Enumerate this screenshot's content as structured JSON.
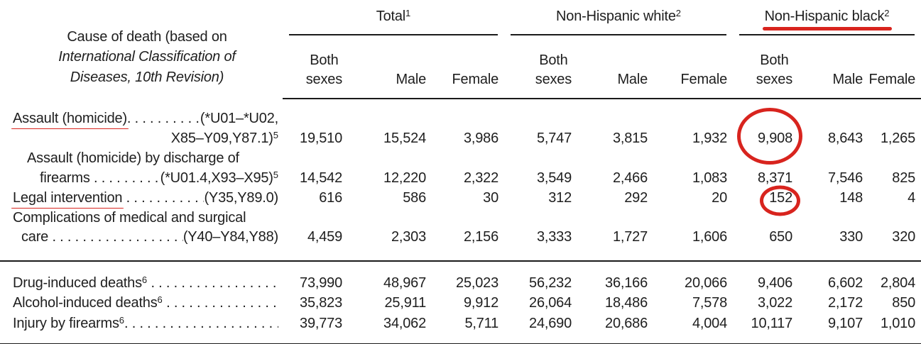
{
  "colors": {
    "annotation_red": "#d8241e",
    "text": "#1e1e1e",
    "rule": "#1a1a1a",
    "background": "#ffffff"
  },
  "stub_head": {
    "line1": "Cause of death (based on",
    "line2": "International Classification of",
    "line3": "Diseases, 10th Revision)"
  },
  "groups": [
    {
      "label": "Total",
      "sup": "1",
      "red_underline": false
    },
    {
      "label": "Non-Hispanic white",
      "sup": "2",
      "red_underline": false
    },
    {
      "label": "Non-Hispanic black",
      "sup": "2",
      "red_underline": true
    }
  ],
  "sub_headers": {
    "both": "Both",
    "sexes": "sexes",
    "male": "Male",
    "female": "Female"
  },
  "body_lines": [
    {
      "section": "main",
      "indent": 0,
      "name": "Assault (homicide)",
      "name_underline": true,
      "dots": ". . . . . . . . . . . . . . . . . . . . . . . . . . . .",
      "code": "(*U01–*U02,"
    },
    {
      "section": "main",
      "align": "right",
      "code": "X85–Y09,Y87.1)",
      "code_sup": "5",
      "values": [
        "19,510",
        "15,524",
        "3,986",
        "5,747",
        "3,815",
        "1,932",
        "9,908",
        "8,643",
        "1,265"
      ],
      "circle": {
        "col": 6,
        "size": "large"
      }
    },
    {
      "section": "main",
      "indent": 2,
      "name": "Assault (homicide) by discharge of"
    },
    {
      "section": "main",
      "indent": 3,
      "name": "firearms",
      "dots": " . . . . . . . . . . . . . . . . . . . . . . . . . . .",
      "code": "(*U01.4,X93–X95)",
      "code_sup": "5",
      "values": [
        "14,542",
        "12,220",
        "2,322",
        "3,549",
        "2,466",
        "1,083",
        "8,371",
        "7,546",
        "825"
      ]
    },
    {
      "section": "main",
      "indent": 0,
      "name": "Legal intervention",
      "name_underline": true,
      "dots": " . . . . . . . . . . . . . . . . . . . . . . . . . . .",
      "code": "(Y35,Y89.0)",
      "values": [
        "616",
        "586",
        "30",
        "312",
        "292",
        "20",
        "152",
        "148",
        "4"
      ],
      "circle": {
        "col": 6,
        "size": "small"
      }
    },
    {
      "section": "main",
      "indent": 0,
      "name": "Complications of medical and surgical"
    },
    {
      "section": "main",
      "indent": 1,
      "name": "care",
      "dots": " . . . . . . . . . . . . . . . . . . . . . . . . . . .",
      "code": "(Y40–Y84,Y88)",
      "values": [
        "4,459",
        "2,303",
        "2,156",
        "3,333",
        "1,727",
        "1,606",
        "650",
        "330",
        "320"
      ]
    },
    {
      "section": "supplemental",
      "indent": 0,
      "name": "Drug-induced deaths",
      "name_sup": "6",
      "dots": " . . . . . . . . . . . . . . . . . . . . . . . . . . .",
      "values": [
        "73,990",
        "48,967",
        "25,023",
        "56,232",
        "36,166",
        "20,066",
        "9,406",
        "6,602",
        "2,804"
      ]
    },
    {
      "section": "supplemental",
      "indent": 0,
      "name": "Alcohol-induced deaths",
      "name_sup": "6",
      "dots": " . . . . . . . . . . . . . . . . . . . . . . . . . . .",
      "values": [
        "35,823",
        "25,911",
        "9,912",
        "26,064",
        "18,486",
        "7,578",
        "3,022",
        "2,172",
        "850"
      ]
    },
    {
      "section": "supplemental",
      "indent": 0,
      "name": "Injury by firearms",
      "name_sup": "6",
      "dots": ". . . . . . . . . . . . . . . . . . . . . . . . . . . .",
      "values": [
        "39,773",
        "34,062",
        "5,711",
        "24,690",
        "20,686",
        "4,004",
        "10,117",
        "9,107",
        "1,010"
      ]
    }
  ]
}
